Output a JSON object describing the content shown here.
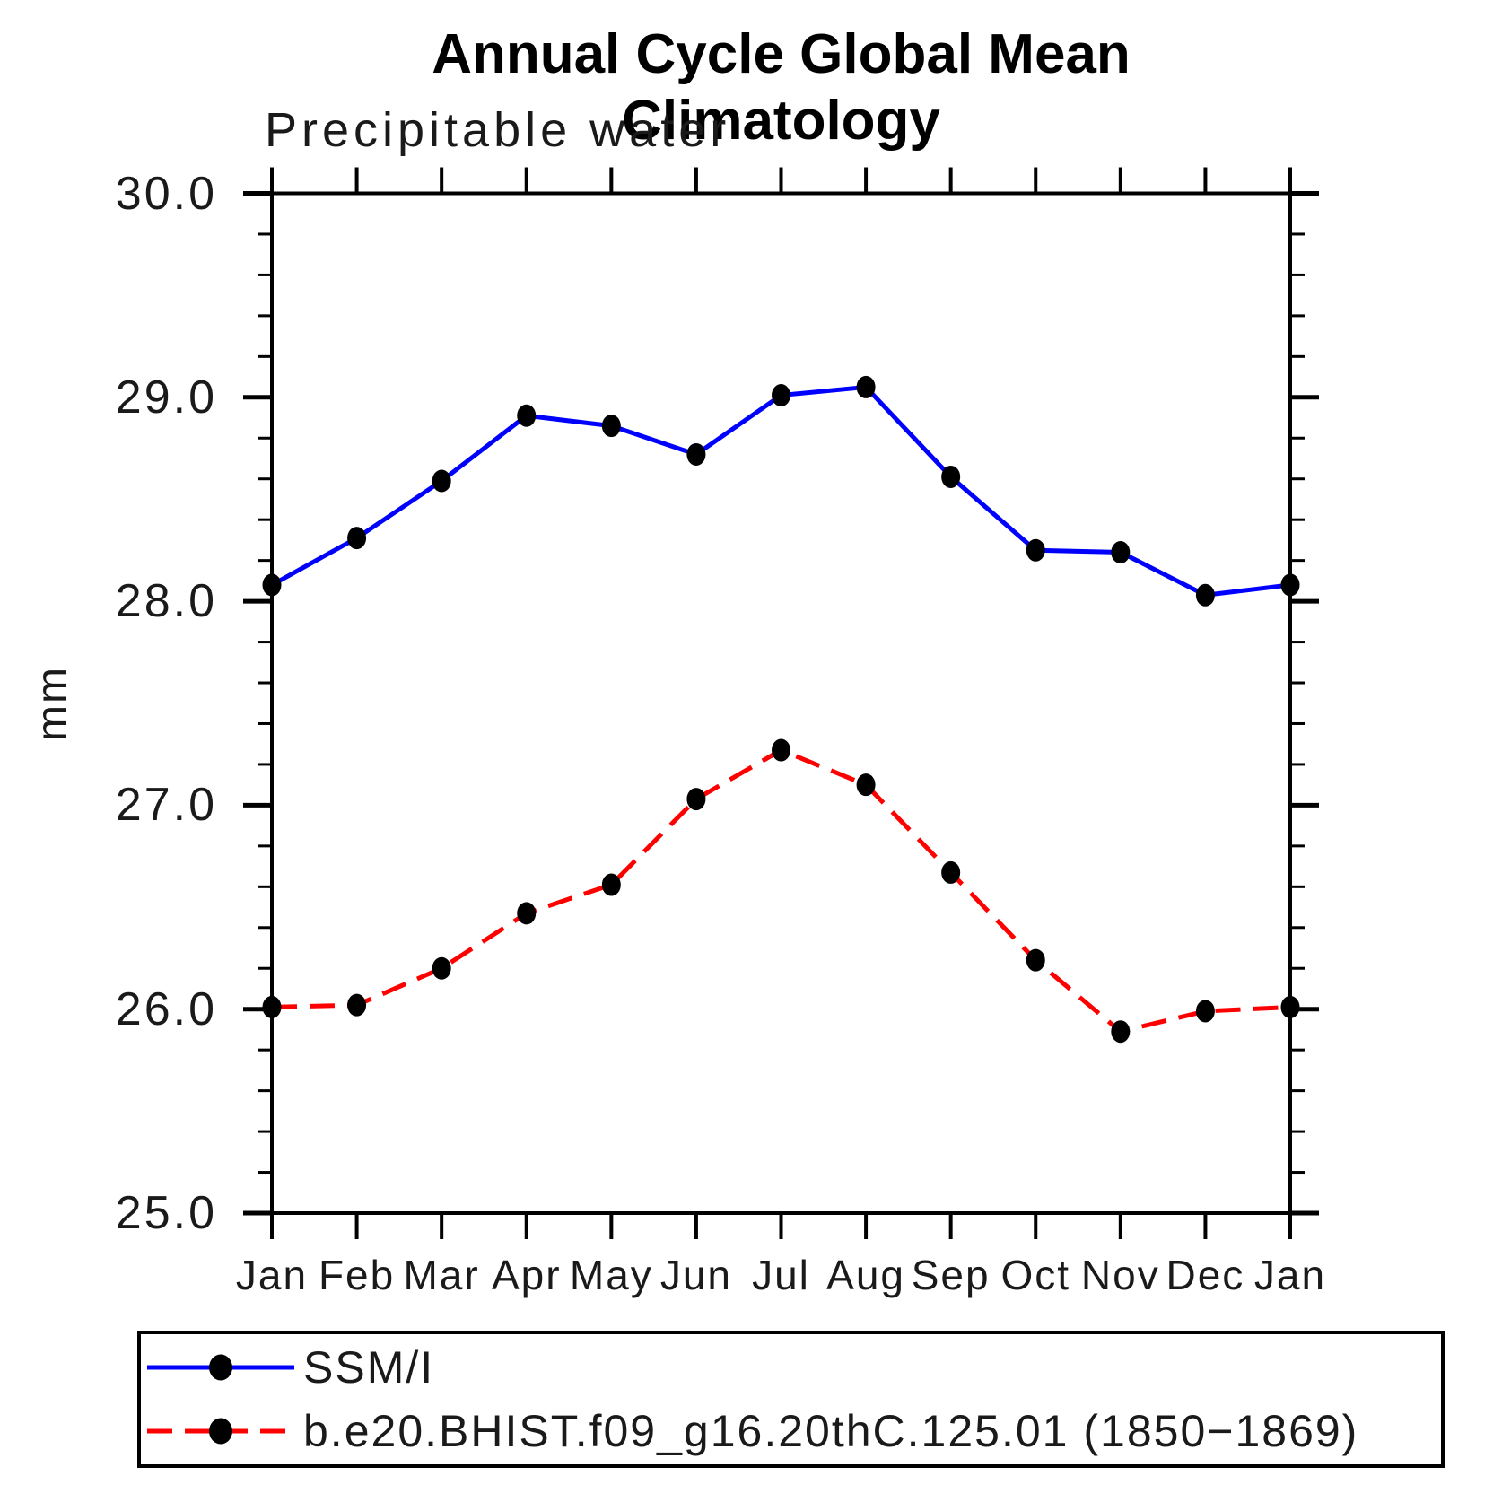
{
  "title": "Annual Cycle Global Mean Climatology",
  "subtitle": "Precipitable water",
  "chart_data": {
    "type": "line",
    "title": "Annual Cycle Global Mean Climatology",
    "subtitle": "Precipitable water",
    "xlabel": "",
    "ylabel": "mm",
    "categories": [
      "Jan",
      "Feb",
      "Mar",
      "Apr",
      "May",
      "Jun",
      "Jul",
      "Aug",
      "Sep",
      "Oct",
      "Nov",
      "Dec",
      "Jan"
    ],
    "ylim": [
      25.0,
      30.0
    ],
    "ytick_major": [
      25.0,
      26.0,
      27.0,
      28.0,
      29.0,
      30.0
    ],
    "ytick_labels": [
      "25.0",
      "26.0",
      "27.0",
      "28.0",
      "29.0",
      "30.0"
    ],
    "ytick_minor_step": 0.2,
    "grid": false,
    "legend_position": "bottom-left-box",
    "axis_color": "#000000",
    "marker_color": "#000000",
    "series": [
      {
        "name": "SSM/I",
        "color": "#0000ff",
        "style": "solid",
        "marker": "circle",
        "values": [
          28.08,
          28.31,
          28.59,
          28.91,
          28.86,
          28.72,
          29.01,
          29.05,
          28.61,
          28.25,
          28.24,
          28.03,
          28.08
        ]
      },
      {
        "name": "b.e20.BHIST.f09_g16.20thC.125.01 (1850−1869)",
        "color": "#ff0000",
        "style": "dashed",
        "marker": "circle",
        "values": [
          26.01,
          26.02,
          26.2,
          26.47,
          26.61,
          27.03,
          27.27,
          27.1,
          26.67,
          26.24,
          25.89,
          25.99,
          26.01
        ]
      }
    ]
  }
}
